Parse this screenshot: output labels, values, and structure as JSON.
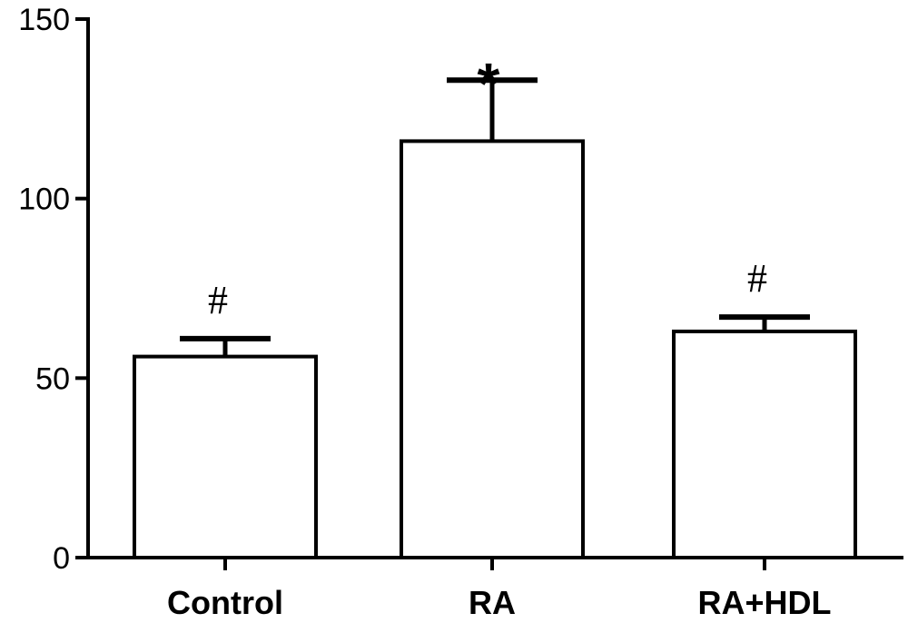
{
  "chart_data": {
    "type": "bar",
    "categories": [
      "Control",
      "RA",
      "RA+HDL"
    ],
    "values": [
      56,
      116,
      63
    ],
    "errors": [
      5,
      17,
      4
    ],
    "annotations": [
      "#",
      "*",
      "#"
    ],
    "ylim": [
      0,
      150
    ],
    "yticks": [
      0,
      50,
      100,
      150
    ],
    "ytick_labels": [
      "0",
      "50",
      "100",
      "150"
    ],
    "grid": false,
    "bar_fill": "#ffffff",
    "bar_edge": "#000000"
  }
}
